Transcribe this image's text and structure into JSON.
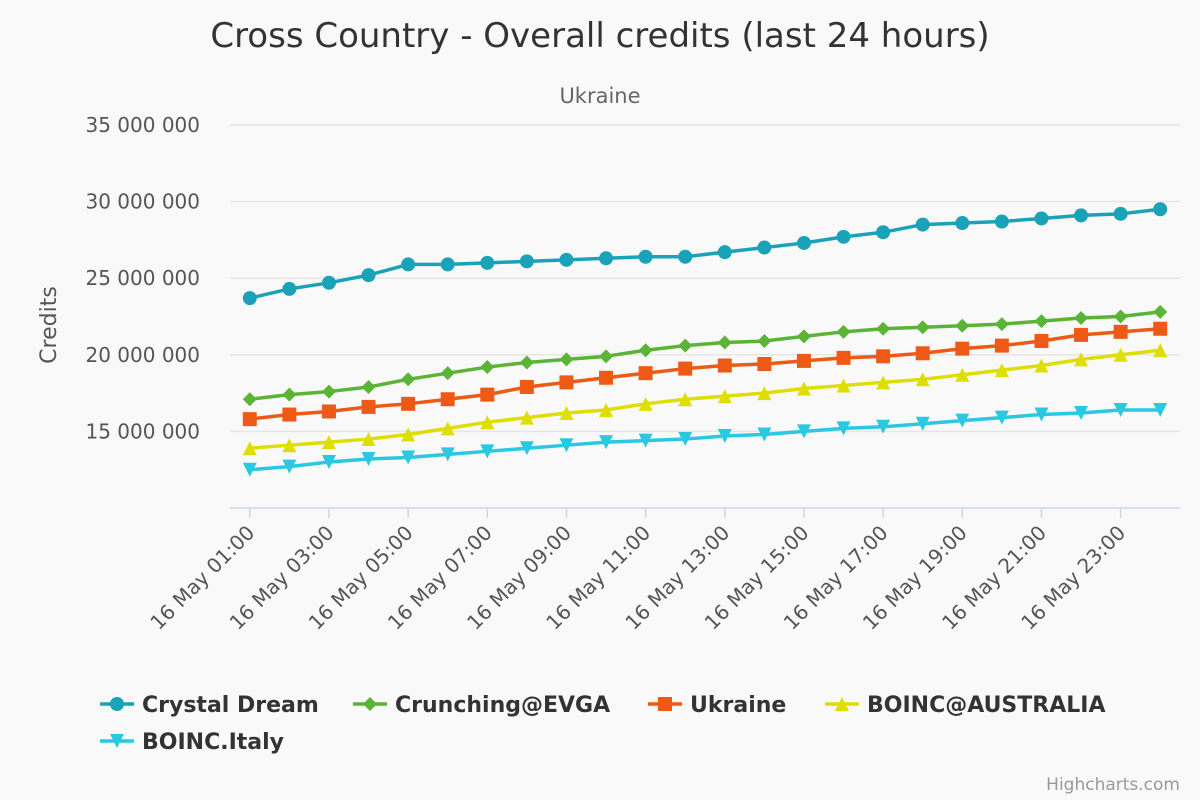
{
  "chart_data": {
    "type": "line",
    "title": "Cross Country - Overall credits (last 24 hours)",
    "subtitle": "Ukraine",
    "ylabel": "Credits",
    "xlabel": "",
    "ylim": [
      10000000,
      35000000
    ],
    "y_ticks": [
      {
        "value": 15000000,
        "label": "15 000 000"
      },
      {
        "value": 20000000,
        "label": "20 000 000"
      },
      {
        "value": 25000000,
        "label": "25 000 000"
      },
      {
        "value": 30000000,
        "label": "30 000 000"
      },
      {
        "value": 35000000,
        "label": "35 000 000"
      }
    ],
    "grid": true,
    "legend_position": "bottom",
    "x": [
      "16 May 01:00",
      "16 May 02:00",
      "16 May 03:00",
      "16 May 04:00",
      "16 May 05:00",
      "16 May 06:00",
      "16 May 07:00",
      "16 May 08:00",
      "16 May 09:00",
      "16 May 10:00",
      "16 May 11:00",
      "16 May 12:00",
      "16 May 13:00",
      "16 May 14:00",
      "16 May 15:00",
      "16 May 16:00",
      "16 May 17:00",
      "16 May 18:00",
      "16 May 19:00",
      "16 May 20:00",
      "16 May 21:00",
      "16 May 22:00",
      "16 May 23:00",
      "17 May 00:00"
    ],
    "x_tick_labels": [
      "16 May 01:00",
      "16 May 03:00",
      "16 May 05:00",
      "16 May 07:00",
      "16 May 09:00",
      "16 May 11:00",
      "16 May 13:00",
      "16 May 15:00",
      "16 May 17:00",
      "16 May 19:00",
      "16 May 21:00",
      "16 May 23:00"
    ],
    "series": [
      {
        "name": "Crystal Dream",
        "color": "#1aa3b8",
        "marker": "circle",
        "values": [
          23700000,
          24300000,
          24700000,
          25200000,
          25900000,
          25900000,
          26000000,
          26100000,
          26200000,
          26300000,
          26400000,
          26400000,
          26700000,
          27000000,
          27300000,
          27700000,
          28000000,
          28500000,
          28600000,
          28700000,
          28900000,
          29100000,
          29200000,
          29500000
        ]
      },
      {
        "name": "Crunching@EVGA",
        "color": "#5bb435",
        "marker": "diamond",
        "values": [
          17100000,
          17400000,
          17600000,
          17900000,
          18400000,
          18800000,
          19200000,
          19500000,
          19700000,
          19900000,
          20300000,
          20600000,
          20800000,
          20900000,
          21200000,
          21500000,
          21700000,
          21800000,
          21900000,
          22000000,
          22200000,
          22400000,
          22500000,
          22800000
        ]
      },
      {
        "name": "Ukraine",
        "color": "#ee5a16",
        "marker": "square",
        "values": [
          15800000,
          16100000,
          16300000,
          16600000,
          16800000,
          17100000,
          17400000,
          17900000,
          18200000,
          18500000,
          18800000,
          19100000,
          19300000,
          19400000,
          19600000,
          19800000,
          19900000,
          20100000,
          20400000,
          20600000,
          20900000,
          21300000,
          21500000,
          21700000
        ]
      },
      {
        "name": "BOINC@AUSTRALIA",
        "color": "#dede00",
        "marker": "triangle",
        "values": [
          13900000,
          14100000,
          14300000,
          14500000,
          14800000,
          15200000,
          15600000,
          15900000,
          16200000,
          16400000,
          16800000,
          17100000,
          17300000,
          17500000,
          17800000,
          18000000,
          18200000,
          18400000,
          18700000,
          19000000,
          19300000,
          19700000,
          20000000,
          20300000
        ]
      },
      {
        "name": "BOINC.Italy",
        "color": "#2bc8e1",
        "marker": "triangle-down",
        "values": [
          12500000,
          12700000,
          13000000,
          13200000,
          13300000,
          13500000,
          13700000,
          13900000,
          14100000,
          14300000,
          14400000,
          14500000,
          14700000,
          14800000,
          15000000,
          15200000,
          15300000,
          15500000,
          15700000,
          15900000,
          16100000,
          16200000,
          16400000,
          16400000
        ]
      }
    ]
  },
  "credits": "Highcharts.com"
}
